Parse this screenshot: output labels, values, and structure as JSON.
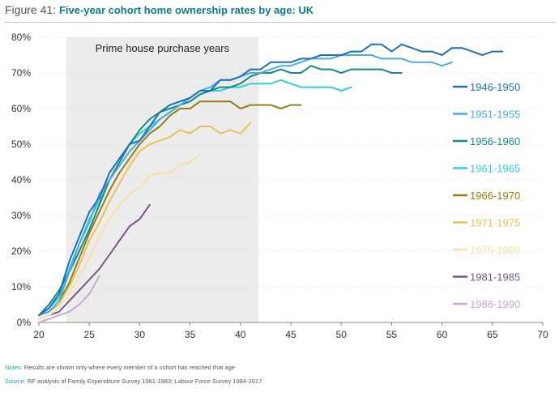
{
  "figure": {
    "label": "Figure 41:",
    "title": "Five-year cohort home ownership rates by age: UK"
  },
  "notes": {
    "label": "Notes:",
    "text": "Results are shown only where every member of a cohort has reached that age"
  },
  "source": {
    "label": "Source:",
    "text": "RF analysis of Family Expenditure Survey 1961-1983; Labour Force Survey 1984-2017"
  },
  "chart_data": {
    "type": "line",
    "title": "Five-year cohort home ownership rates by age: UK",
    "xlabel": "",
    "ylabel": "",
    "xlim": [
      20,
      70
    ],
    "ylim": [
      0,
      80
    ],
    "x_ticks": [
      20,
      25,
      30,
      35,
      40,
      45,
      50,
      55,
      60,
      65,
      70
    ],
    "y_ticks": [
      0,
      10,
      20,
      30,
      40,
      50,
      60,
      70,
      80
    ],
    "y_tick_labels": [
      "0%",
      "10%",
      "20%",
      "30%",
      "40%",
      "50%",
      "60%",
      "70%",
      "80%"
    ],
    "grid": "horizontal",
    "shaded_region": {
      "x_start": 22.7,
      "x_end": 41.8,
      "label": "Prime house purchase years",
      "color": "#ececec"
    },
    "legend_position": "right",
    "series": [
      {
        "name": "1946-1950",
        "color": "#1f6fb2",
        "x": [
          20,
          21,
          22,
          23,
          24,
          25,
          26,
          27,
          28,
          29,
          30,
          31,
          32,
          33,
          34,
          35,
          36,
          37,
          38,
          39,
          40,
          41,
          42,
          43,
          44,
          45,
          46,
          47,
          48,
          49,
          50,
          51,
          52,
          53,
          54,
          55,
          56,
          57,
          58,
          59,
          60,
          61,
          62,
          63,
          64,
          65,
          66
        ],
        "y": [
          2,
          4,
          8,
          17,
          24,
          31,
          35,
          42,
          46,
          50,
          51,
          55,
          59,
          61,
          62,
          63,
          65,
          65,
          68,
          68,
          69,
          71,
          71,
          73,
          73,
          73,
          74,
          74,
          75,
          75,
          75,
          76,
          76,
          78,
          78,
          76,
          78,
          77,
          76,
          76,
          75,
          77,
          77,
          76,
          75,
          76,
          76
        ]
      },
      {
        "name": "1951-1955",
        "color": "#45aee8",
        "x": [
          20,
          21,
          22,
          23,
          24,
          25,
          26,
          27,
          28,
          29,
          30,
          31,
          32,
          33,
          34,
          35,
          36,
          37,
          38,
          39,
          40,
          41,
          42,
          43,
          44,
          45,
          46,
          47,
          48,
          49,
          50,
          51,
          52,
          53,
          54,
          55,
          56,
          57,
          58,
          59,
          60,
          61
        ],
        "y": [
          2,
          3,
          6,
          14,
          22,
          28,
          36,
          40,
          44,
          48,
          51,
          54,
          57,
          59,
          61,
          63,
          65,
          66,
          68,
          68,
          69,
          70,
          70,
          71,
          72,
          72,
          73,
          74,
          74,
          74,
          75,
          75,
          75,
          75,
          74,
          74,
          74,
          73,
          73,
          73,
          72,
          73
        ]
      },
      {
        "name": "1956-1960",
        "color": "#168b86",
        "x": [
          20,
          21,
          22,
          23,
          24,
          25,
          26,
          27,
          28,
          29,
          30,
          31,
          32,
          33,
          34,
          35,
          36,
          37,
          38,
          39,
          40,
          41,
          42,
          43,
          44,
          45,
          46,
          47,
          48,
          49,
          50,
          51,
          52,
          53,
          54,
          55,
          56
        ],
        "y": [
          2,
          5,
          9,
          14,
          20,
          26,
          33,
          40,
          45,
          50,
          54,
          57,
          59,
          60,
          61,
          62,
          64,
          65,
          66,
          66,
          67,
          69,
          70,
          70,
          71,
          70,
          70,
          72,
          71,
          71,
          70,
          71,
          71,
          71,
          71,
          70,
          70
        ]
      },
      {
        "name": "1961-1965",
        "color": "#2ed2d2",
        "x": [
          20,
          21,
          22,
          23,
          24,
          25,
          26,
          27,
          28,
          29,
          30,
          31,
          32,
          33,
          34,
          35,
          36,
          37,
          38,
          39,
          40,
          41,
          42,
          43,
          44,
          45,
          46,
          47,
          48,
          49,
          50,
          51
        ],
        "y": [
          2,
          4,
          7,
          15,
          22,
          29,
          34,
          40,
          45,
          50,
          53,
          55,
          57,
          59,
          61,
          62,
          64,
          65,
          65,
          66,
          66,
          67,
          67,
          67,
          68,
          67,
          66,
          66,
          66,
          66,
          65,
          66
        ]
      },
      {
        "name": "1966-1970",
        "color": "#9a7b13",
        "x": [
          20,
          21,
          22,
          23,
          24,
          25,
          26,
          27,
          28,
          29,
          30,
          31,
          32,
          33,
          34,
          35,
          36,
          37,
          38,
          39,
          40,
          41,
          42,
          43,
          44,
          45,
          46
        ],
        "y": [
          2,
          3,
          6,
          11,
          18,
          25,
          31,
          37,
          42,
          46,
          50,
          53,
          55,
          58,
          60,
          60,
          62,
          62,
          62,
          62,
          60,
          61,
          61,
          61,
          60,
          61,
          61
        ]
      },
      {
        "name": "1971-1975",
        "color": "#e9c257",
        "x": [
          20,
          21,
          22,
          23,
          24,
          25,
          26,
          27,
          28,
          29,
          30,
          31,
          32,
          33,
          34,
          35,
          36,
          37,
          38,
          39,
          40,
          41
        ],
        "y": [
          2,
          3,
          5,
          10,
          16,
          23,
          28,
          34,
          39,
          44,
          48,
          50,
          51,
          52,
          54,
          53,
          55,
          55,
          53,
          54,
          53,
          56
        ]
      },
      {
        "name": "1976-1980",
        "color": "#f6e1a9",
        "x": [
          20,
          21,
          22,
          23,
          24,
          25,
          26,
          27,
          28,
          29,
          30,
          31,
          32,
          33,
          34,
          35,
          36
        ],
        "y": [
          1,
          2,
          4,
          8,
          13,
          18,
          24,
          29,
          33,
          36,
          38,
          41,
          42,
          42,
          44,
          45,
          47
        ]
      },
      {
        "name": "1981-1985",
        "color": "#7a5486",
        "x": [
          20,
          21,
          22,
          23,
          24,
          25,
          26,
          27,
          28,
          29,
          30,
          31
        ],
        "y": [
          1,
          2,
          3,
          6,
          9,
          12,
          15,
          19,
          23,
          27,
          29,
          33
        ]
      },
      {
        "name": "1986-1990",
        "color": "#c7a8d6",
        "x": [
          20,
          21,
          22,
          23,
          24,
          25,
          26
        ],
        "y": [
          0,
          1,
          2,
          3,
          5,
          8,
          13
        ]
      }
    ]
  }
}
